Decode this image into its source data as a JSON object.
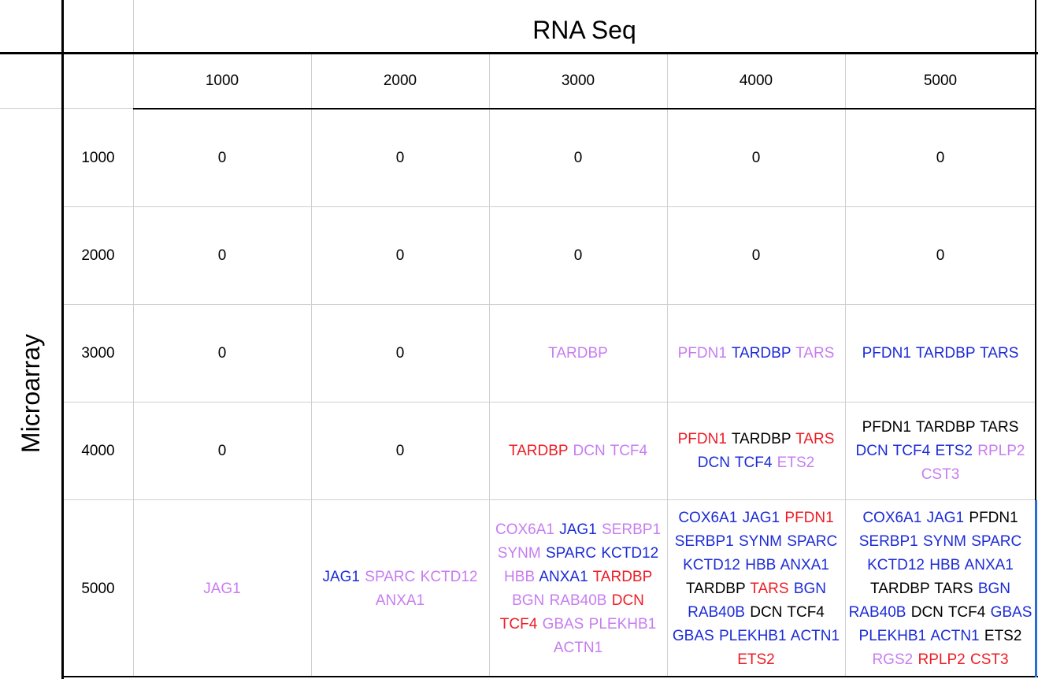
{
  "table": {
    "column_group_label": "RNA Seq",
    "row_group_label": "Microarray",
    "columns": [
      "1000",
      "2000",
      "3000",
      "4000",
      "5000"
    ],
    "rows": [
      {
        "label": "1000",
        "cells": [
          {
            "value": "0"
          },
          {
            "value": "0"
          },
          {
            "value": "0"
          },
          {
            "value": "0"
          },
          {
            "value": "0"
          }
        ]
      },
      {
        "label": "2000",
        "cells": [
          {
            "value": "0"
          },
          {
            "value": "0"
          },
          {
            "value": "0"
          },
          {
            "value": "0"
          },
          {
            "value": "0"
          }
        ]
      },
      {
        "label": "3000",
        "cells": [
          {
            "value": "0"
          },
          {
            "value": "0"
          },
          {
            "genes": [
              {
                "name": "TARDBP",
                "color": "#c77df0"
              }
            ]
          },
          {
            "genes": [
              {
                "name": "PFDN1",
                "color": "#c77df0"
              },
              {
                "name": "TARDBP",
                "color": "#1c2bd6"
              },
              {
                "name": "TARS",
                "color": "#c77df0"
              }
            ]
          },
          {
            "genes": [
              {
                "name": "PFDN1",
                "color": "#1c2bd6"
              },
              {
                "name": "TARDBP",
                "color": "#1c2bd6"
              },
              {
                "name": "TARS",
                "color": "#1c2bd6"
              }
            ]
          }
        ]
      },
      {
        "label": "4000",
        "cells": [
          {
            "value": "0"
          },
          {
            "value": "0"
          },
          {
            "genes": [
              {
                "name": "TARDBP",
                "color": "#ee1c24"
              },
              {
                "name": "DCN",
                "color": "#c77df0"
              },
              {
                "name": "TCF4",
                "color": "#c77df0"
              }
            ]
          },
          {
            "genes": [
              {
                "name": "PFDN1",
                "color": "#ee1c24"
              },
              {
                "name": "TARDBP",
                "color": "#000000"
              },
              {
                "name": "TARS",
                "color": "#ee1c24"
              },
              {
                "name": "DCN",
                "color": "#1c2bd6"
              },
              {
                "name": "TCF4",
                "color": "#1c2bd6"
              },
              {
                "name": "ETS2",
                "color": "#c77df0"
              }
            ]
          },
          {
            "genes": [
              {
                "name": "PFDN1",
                "color": "#000000"
              },
              {
                "name": "TARDBP",
                "color": "#000000"
              },
              {
                "name": "TARS",
                "color": "#000000"
              },
              {
                "name": "DCN",
                "color": "#1c2bd6"
              },
              {
                "name": "TCF4",
                "color": "#1c2bd6"
              },
              {
                "name": "ETS2",
                "color": "#1c2bd6"
              },
              {
                "name": "RPLP2",
                "color": "#c77df0"
              },
              {
                "name": "CST3",
                "color": "#c77df0"
              }
            ]
          }
        ]
      },
      {
        "label": "5000",
        "cells": [
          {
            "genes": [
              {
                "name": "JAG1",
                "color": "#c77df0"
              }
            ]
          },
          {
            "genes": [
              {
                "name": "JAG1",
                "color": "#1c2bd6"
              },
              {
                "name": "SPARC",
                "color": "#c77df0"
              },
              {
                "name": "KCTD12",
                "color": "#c77df0"
              },
              {
                "name": "ANXA1",
                "color": "#c77df0"
              }
            ]
          },
          {
            "genes": [
              {
                "name": "COX6A1",
                "color": "#c77df0"
              },
              {
                "name": "JAG1",
                "color": "#1c2bd6"
              },
              {
                "name": "SERBP1",
                "color": "#c77df0"
              },
              {
                "name": "SYNM",
                "color": "#c77df0"
              },
              {
                "name": "SPARC",
                "color": "#1c2bd6"
              },
              {
                "name": "KCTD12",
                "color": "#1c2bd6"
              },
              {
                "name": "HBB",
                "color": "#c77df0"
              },
              {
                "name": "ANXA1",
                "color": "#1c2bd6"
              },
              {
                "name": "TARDBP",
                "color": "#ee1c24"
              },
              {
                "name": "BGN",
                "color": "#c77df0"
              },
              {
                "name": "RAB40B",
                "color": "#c77df0"
              },
              {
                "name": "DCN",
                "color": "#ee1c24"
              },
              {
                "name": "TCF4",
                "color": "#ee1c24"
              },
              {
                "name": "GBAS",
                "color": "#c77df0"
              },
              {
                "name": "PLEKHB1",
                "color": "#c77df0"
              },
              {
                "name": "ACTN1",
                "color": "#c77df0"
              }
            ]
          },
          {
            "genes": [
              {
                "name": "COX6A1",
                "color": "#1c2bd6"
              },
              {
                "name": "JAG1",
                "color": "#1c2bd6"
              },
              {
                "name": "PFDN1",
                "color": "#ee1c24"
              },
              {
                "name": "SERBP1",
                "color": "#1c2bd6"
              },
              {
                "name": "SYNM",
                "color": "#1c2bd6"
              },
              {
                "name": "SPARC",
                "color": "#1c2bd6"
              },
              {
                "name": "KCTD12",
                "color": "#1c2bd6"
              },
              {
                "name": "HBB",
                "color": "#1c2bd6"
              },
              {
                "name": "ANXA1",
                "color": "#1c2bd6"
              },
              {
                "name": "TARDBP",
                "color": "#000000"
              },
              {
                "name": "TARS",
                "color": "#ee1c24"
              },
              {
                "name": "BGN",
                "color": "#1c2bd6"
              },
              {
                "name": "RAB40B",
                "color": "#1c2bd6"
              },
              {
                "name": "DCN",
                "color": "#000000"
              },
              {
                "name": "TCF4",
                "color": "#000000"
              },
              {
                "name": "GBAS",
                "color": "#1c2bd6"
              },
              {
                "name": "PLEKHB1",
                "color": "#1c2bd6"
              },
              {
                "name": "ACTN1",
                "color": "#1c2bd6"
              },
              {
                "name": "ETS2",
                "color": "#ee1c24"
              }
            ]
          },
          {
            "genes": [
              {
                "name": "COX6A1",
                "color": "#1c2bd6"
              },
              {
                "name": "JAG1",
                "color": "#1c2bd6"
              },
              {
                "name": "PFDN1",
                "color": "#000000"
              },
              {
                "name": "SERBP1",
                "color": "#1c2bd6"
              },
              {
                "name": "SYNM",
                "color": "#1c2bd6"
              },
              {
                "name": "SPARC",
                "color": "#1c2bd6"
              },
              {
                "name": "KCTD12",
                "color": "#1c2bd6"
              },
              {
                "name": "HBB",
                "color": "#1c2bd6"
              },
              {
                "name": "ANXA1",
                "color": "#1c2bd6"
              },
              {
                "name": "TARDBP",
                "color": "#000000"
              },
              {
                "name": "TARS",
                "color": "#000000"
              },
              {
                "name": "BGN",
                "color": "#1c2bd6"
              },
              {
                "name": "RAB40B",
                "color": "#1c2bd6"
              },
              {
                "name": "DCN",
                "color": "#000000"
              },
              {
                "name": "TCF4",
                "color": "#000000"
              },
              {
                "name": "GBAS",
                "color": "#1c2bd6"
              },
              {
                "name": "PLEKHB1",
                "color": "#1c2bd6"
              },
              {
                "name": "ACTN1",
                "color": "#1c2bd6"
              },
              {
                "name": "ETS2",
                "color": "#000000"
              },
              {
                "name": "RGS2",
                "color": "#c77df0"
              },
              {
                "name": "RPLP2",
                "color": "#ee1c24"
              },
              {
                "name": "CST3",
                "color": "#ee1c24"
              }
            ]
          }
        ]
      }
    ]
  }
}
